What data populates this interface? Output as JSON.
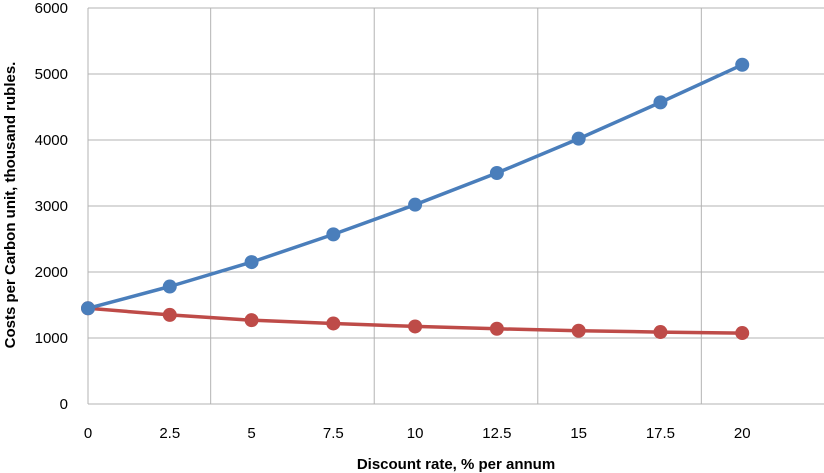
{
  "chart_data": {
    "type": "line",
    "xlabel": "Discount rate, % per annum",
    "ylabel": "Costs per Carbon unit, thousand rubles.",
    "x": [
      0,
      2.5,
      5,
      7.5,
      10,
      12.5,
      15,
      17.5,
      20
    ],
    "x_tick_labels": [
      "0",
      "2.5",
      "5",
      "7.5",
      "10",
      "12.5",
      "15",
      "17.5",
      "20"
    ],
    "y_tick_labels": [
      "0",
      "1000",
      "2000",
      "3000",
      "4000",
      "5000",
      "6000"
    ],
    "y_ticks": [
      0,
      1000,
      2000,
      3000,
      4000,
      5000,
      6000
    ],
    "ylim": [
      0,
      6000
    ],
    "grid": true,
    "legend": "none",
    "series": [
      {
        "color": "#4a7ebb",
        "values": [
          1450,
          1780,
          2150,
          2570,
          3020,
          3500,
          4020,
          4570,
          5140
        ]
      },
      {
        "color": "#be4b48",
        "values": [
          1450,
          1350,
          1270,
          1220,
          1175,
          1140,
          1110,
          1090,
          1075
        ]
      }
    ]
  }
}
